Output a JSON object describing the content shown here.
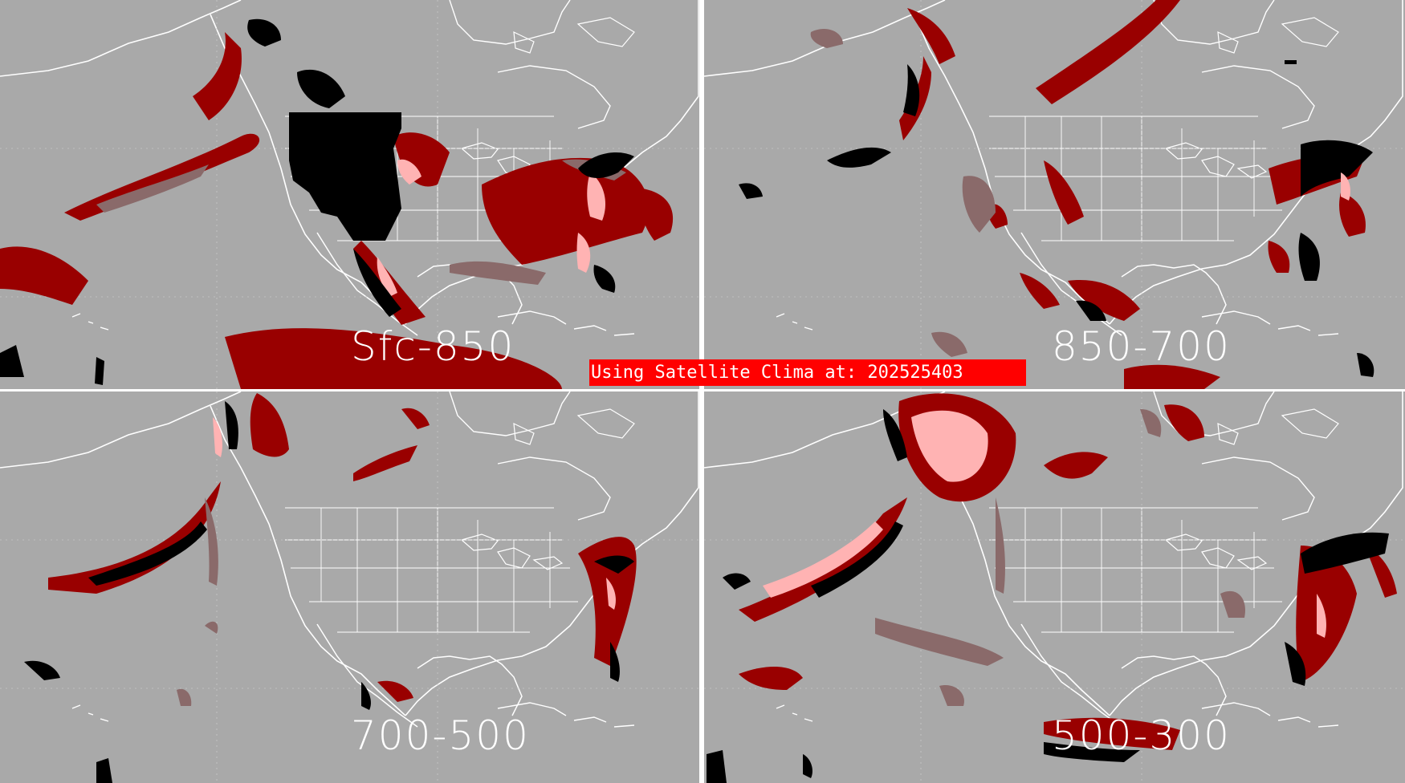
{
  "colors": {
    "background": "#a9a9a9",
    "boundary": "#ffffff",
    "divider": "#ffffff",
    "class_dark_red": "#990000",
    "class_muted": "#8a6a6a",
    "class_pink": "#ffb3b3",
    "class_black": "#000000",
    "banner_bg": "#ff0000",
    "banner_text": "#ffffff"
  },
  "banner": {
    "text": "Using Satellite Clima at: 202525403"
  },
  "panels": [
    {
      "id": "sfc-850",
      "label": "Sfc-850"
    },
    {
      "id": "850-700",
      "label": "850-700"
    },
    {
      "id": "700-500",
      "label": "700-500"
    },
    {
      "id": "500-300",
      "label": "500-300"
    }
  ]
}
